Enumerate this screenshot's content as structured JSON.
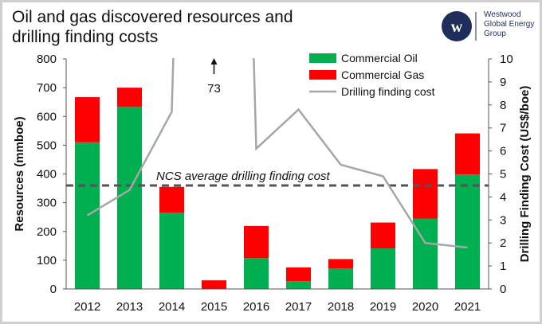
{
  "title": "Oil and gas discovered resources and drilling finding costs",
  "logo": {
    "lines": [
      "Westwood",
      "Global Energy",
      "Group"
    ]
  },
  "chart_data": {
    "type": "bar",
    "stacked": true,
    "categories": [
      "2012",
      "2013",
      "2014",
      "2015",
      "2016",
      "2017",
      "2018",
      "2019",
      "2020",
      "2021"
    ],
    "series": [
      {
        "name": "Commercial Oil",
        "color": "#00b050",
        "values": [
          510,
          633,
          265,
          0,
          107,
          27,
          72,
          141,
          245,
          398
        ]
      },
      {
        "name": "Commercial Gas",
        "color": "#ff0000",
        "values": [
          157,
          67,
          90,
          30,
          112,
          48,
          32,
          90,
          172,
          143
        ]
      }
    ],
    "line_series": {
      "name": "Drilling finding cost",
      "color": "#a6a6a6",
      "axis": "right",
      "values": [
        3.2,
        4.3,
        7.7,
        73,
        6.1,
        7.8,
        5.4,
        4.9,
        2.0,
        1.8
      ]
    },
    "reference_line": {
      "label": "NCS average drilling finding cost",
      "value": 4.5,
      "axis": "right",
      "color": "#555555"
    },
    "annotation": {
      "text": "73",
      "category": "2015",
      "arrow": "up"
    },
    "ylabel": "Resources (mmboe)",
    "y2label": "Drilling Finding Cost (US$/boe)",
    "ylim": [
      0,
      800
    ],
    "y2lim": [
      0,
      10
    ],
    "yticks": [
      0,
      100,
      200,
      300,
      400,
      500,
      600,
      700,
      800
    ],
    "y2ticks": [
      0,
      1,
      2,
      3,
      4,
      5,
      6,
      7,
      8,
      9,
      10
    ],
    "legend_position": "top-right",
    "grid": false
  }
}
